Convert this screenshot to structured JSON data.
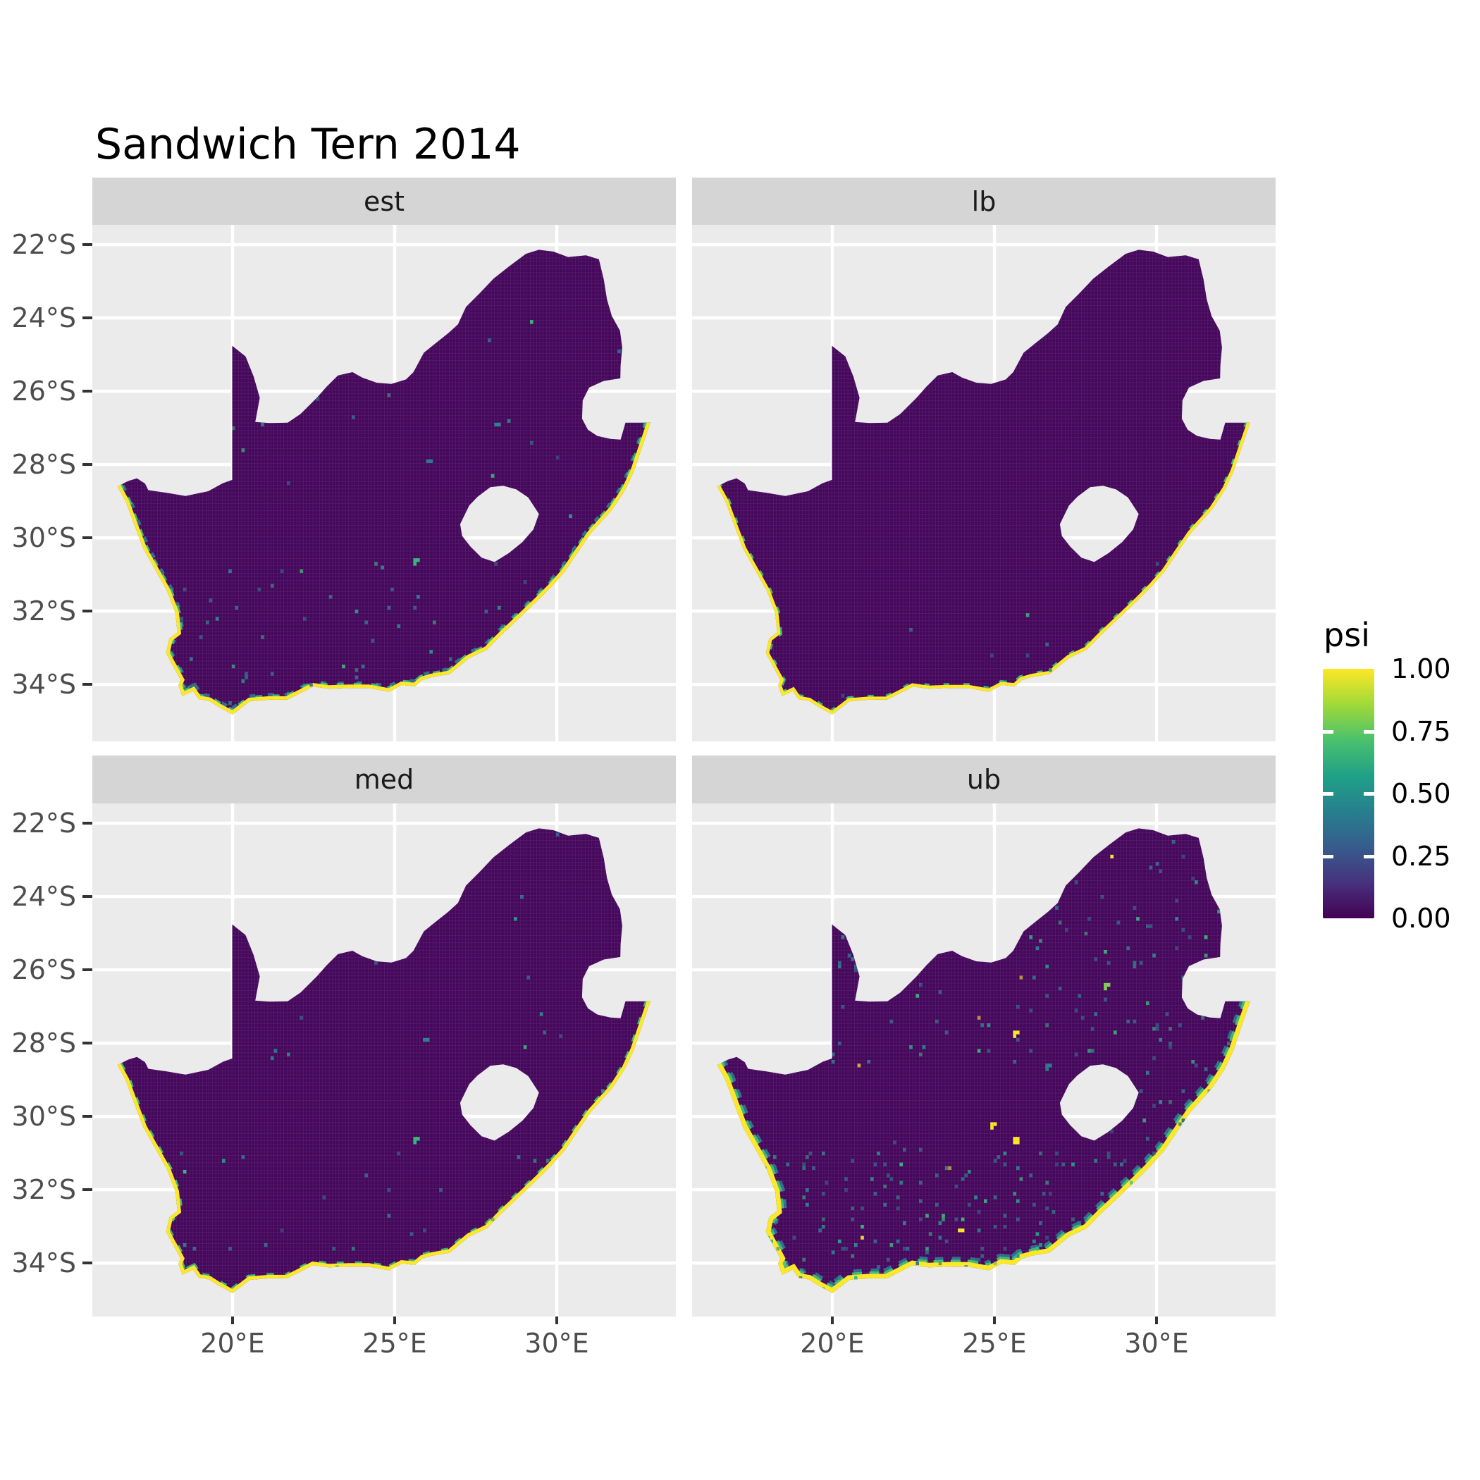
{
  "title": "Sandwich Tern 2014",
  "legend": {
    "title": "psi",
    "labels": [
      "1.00",
      "0.75",
      "0.50",
      "0.25",
      "0.00"
    ],
    "values": [
      1.0,
      0.75,
      0.5,
      0.25,
      0.0
    ]
  },
  "facets": [
    {
      "label": "est",
      "col": 0,
      "row": 0,
      "seed": 11,
      "speckles": 260,
      "bands": {
        "yellow": 10,
        "green": 15,
        "green_dash": "10 14",
        "teal": 19,
        "teal_dash": "8 18"
      },
      "hotspots": [
        [
          25.62,
          -30.66,
          "#35B779",
          3
        ],
        [
          28.1,
          -26.95,
          "#26828E",
          2
        ],
        [
          26.05,
          -27.9,
          "#2A788E",
          2
        ]
      ]
    },
    {
      "label": "lb",
      "col": 1,
      "row": 0,
      "seed": 22,
      "speckles": 24,
      "bands": {
        "yellow": 9,
        "green": 14,
        "green_dash": "8 20",
        "teal": 0,
        "teal_dash": "6 20"
      },
      "hotspots": []
    },
    {
      "label": "med",
      "col": 0,
      "row": 1,
      "seed": 33,
      "speckles": 160,
      "bands": {
        "yellow": 10,
        "green": 15,
        "green_dash": "10 16",
        "teal": 0,
        "teal_dash": "6 20"
      },
      "hotspots": [
        [
          25.62,
          -30.66,
          "#35B779",
          3
        ],
        [
          25.95,
          -27.95,
          "#26828E",
          2
        ]
      ]
    },
    {
      "label": "ub",
      "col": 1,
      "row": 1,
      "seed": 44,
      "speckles": 950,
      "bands": {
        "yellow": 13,
        "green": 20,
        "green_dash": "14 10",
        "teal": 28,
        "teal_dash": "12 12"
      },
      "hotspots": [
        [
          25.65,
          -30.6,
          "#FDE725",
          4
        ],
        [
          24.9,
          -30.2,
          "#FDE725",
          3
        ],
        [
          25.6,
          -27.72,
          "#FDE725",
          3
        ],
        [
          28.45,
          -26.45,
          "#7AD151",
          3
        ],
        [
          28.2,
          -28.9,
          "#22A884",
          3
        ],
        [
          23.95,
          -33.15,
          "#FDE725",
          2
        ],
        [
          26.6,
          -28.6,
          "#2A788E",
          3
        ]
      ]
    }
  ],
  "axes": {
    "x_tick_labels": [
      "20°E",
      "25°E",
      "30°E"
    ],
    "x_tick_values": [
      20,
      25,
      30
    ],
    "y_tick_labels": [
      "22°S",
      "24°S",
      "26°S",
      "28°S",
      "30°S",
      "32°S",
      "34°S"
    ],
    "y_tick_values": [
      -22,
      -24,
      -26,
      -28,
      -30,
      -32,
      -34
    ]
  },
  "colors": {
    "panel_bg": "#EBEBEB",
    "strip_bg": "#D5D5D5",
    "gridline": "#FFFFFF",
    "map_fill": "#46085C",
    "coast_yellow": "#FDE725",
    "band_green": "#3DBC74",
    "band_teal": "#2A788E",
    "axis_text": "#4D4D4D",
    "tick_mark": "#333333",
    "viridis_stops": [
      "#FDE725",
      "#A0DA39",
      "#4AC16D",
      "#1FA187",
      "#277F8E",
      "#365C8D",
      "#46327E",
      "#440154"
    ]
  },
  "chart_data": {
    "type": "heatmap",
    "title": "Sandwich Tern 2014",
    "facets": [
      "est",
      "lb",
      "med",
      "ub"
    ],
    "variable": "psi",
    "palette": "viridis",
    "scale_range": [
      0.0,
      1.0
    ],
    "scale_breaks": [
      0.0,
      0.25,
      0.5,
      0.75,
      1.0
    ],
    "x_axis": {
      "ticks_deg_east": [
        20,
        25,
        30
      ],
      "range_deg_east": [
        15.67,
        33.67
      ]
    },
    "y_axis": {
      "ticks_deg_south": [
        22,
        24,
        26,
        28,
        30,
        32,
        34
      ],
      "range_deg_south": [
        21.46,
        35.56
      ]
    },
    "description": "Occupancy probability (psi) raster maps of South Africa for Sandwich Tern 2014; est, lb, med show psi near 0 inland with psi near 1 along the coastline; ub shows elevated scattered values inland, especially in the south, with psi near 1 on the coast. Lesotho and Eswatini are excluded (no data)."
  },
  "map": {
    "outline": [
      [
        16.45,
        -28.6
      ],
      [
        16.78,
        -28.45
      ],
      [
        17.05,
        -28.38
      ],
      [
        17.3,
        -28.52
      ],
      [
        17.4,
        -28.7
      ],
      [
        17.95,
        -28.77
      ],
      [
        18.55,
        -28.86
      ],
      [
        19.25,
        -28.73
      ],
      [
        19.7,
        -28.51
      ],
      [
        19.99,
        -28.42
      ],
      [
        19.99,
        -24.76
      ],
      [
        20.4,
        -25.05
      ],
      [
        20.65,
        -25.6
      ],
      [
        20.84,
        -26.18
      ],
      [
        20.7,
        -26.84
      ],
      [
        21.15,
        -26.87
      ],
      [
        21.7,
        -26.86
      ],
      [
        22.1,
        -26.62
      ],
      [
        22.6,
        -26.18
      ],
      [
        22.9,
        -25.88
      ],
      [
        23.25,
        -25.57
      ],
      [
        23.7,
        -25.48
      ],
      [
        24.0,
        -25.63
      ],
      [
        24.45,
        -25.77
      ],
      [
        24.9,
        -25.8
      ],
      [
        25.35,
        -25.68
      ],
      [
        25.58,
        -25.48
      ],
      [
        25.9,
        -24.95
      ],
      [
        26.28,
        -24.68
      ],
      [
        26.65,
        -24.42
      ],
      [
        26.95,
        -24.18
      ],
      [
        27.2,
        -23.7
      ],
      [
        27.62,
        -23.33
      ],
      [
        28.05,
        -22.93
      ],
      [
        28.55,
        -22.58
      ],
      [
        29.05,
        -22.25
      ],
      [
        29.45,
        -22.14
      ],
      [
        29.9,
        -22.19
      ],
      [
        30.35,
        -22.34
      ],
      [
        30.9,
        -22.29
      ],
      [
        31.3,
        -22.4
      ],
      [
        31.45,
        -22.95
      ],
      [
        31.55,
        -23.5
      ],
      [
        31.7,
        -23.95
      ],
      [
        31.95,
        -24.35
      ],
      [
        32.02,
        -24.8
      ],
      [
        31.97,
        -25.3
      ],
      [
        31.96,
        -25.65
      ],
      [
        31.45,
        -25.72
      ],
      [
        31.0,
        -25.9
      ],
      [
        30.8,
        -26.25
      ],
      [
        30.78,
        -26.75
      ],
      [
        30.96,
        -27.05
      ],
      [
        31.25,
        -27.22
      ],
      [
        31.65,
        -27.3
      ],
      [
        31.97,
        -27.32
      ],
      [
        32.12,
        -26.86
      ],
      [
        32.55,
        -26.86
      ],
      [
        32.89,
        -26.86
      ],
      [
        32.64,
        -27.5
      ],
      [
        32.38,
        -28.18
      ],
      [
        32.12,
        -28.68
      ],
      [
        31.72,
        -29.22
      ],
      [
        31.05,
        -29.88
      ],
      [
        30.63,
        -30.42
      ],
      [
        30.25,
        -30.92
      ],
      [
        29.85,
        -31.32
      ],
      [
        29.4,
        -31.72
      ],
      [
        28.88,
        -32.16
      ],
      [
        28.28,
        -32.66
      ],
      [
        27.85,
        -33.05
      ],
      [
        27.3,
        -33.28
      ],
      [
        26.7,
        -33.72
      ],
      [
        26.15,
        -33.8
      ],
      [
        25.85,
        -33.88
      ],
      [
        25.63,
        -34.05
      ],
      [
        25.22,
        -34.02
      ],
      [
        24.83,
        -34.2
      ],
      [
        24.2,
        -34.1
      ],
      [
        23.58,
        -34.1
      ],
      [
        22.98,
        -34.12
      ],
      [
        22.48,
        -34.06
      ],
      [
        22.13,
        -34.22
      ],
      [
        21.68,
        -34.42
      ],
      [
        21.12,
        -34.42
      ],
      [
        20.53,
        -34.46
      ],
      [
        20.0,
        -34.82
      ],
      [
        19.58,
        -34.62
      ],
      [
        19.28,
        -34.45
      ],
      [
        18.95,
        -34.4
      ],
      [
        18.78,
        -34.18
      ],
      [
        18.45,
        -34.32
      ],
      [
        18.33,
        -34.02
      ],
      [
        18.4,
        -33.88
      ],
      [
        17.95,
        -33.15
      ],
      [
        18.05,
        -32.75
      ],
      [
        18.3,
        -32.58
      ],
      [
        18.24,
        -32.05
      ],
      [
        17.98,
        -31.45
      ],
      [
        17.62,
        -30.88
      ],
      [
        17.25,
        -30.3
      ],
      [
        16.95,
        -29.6
      ],
      [
        16.7,
        -29.0
      ]
    ],
    "coast_start": 58,
    "lesotho": [
      [
        27.02,
        -29.63
      ],
      [
        27.3,
        -29.12
      ],
      [
        27.56,
        -28.88
      ],
      [
        27.95,
        -28.62
      ],
      [
        28.35,
        -28.58
      ],
      [
        28.75,
        -28.68
      ],
      [
        29.12,
        -28.9
      ],
      [
        29.45,
        -29.35
      ],
      [
        29.28,
        -29.77
      ],
      [
        28.94,
        -30.12
      ],
      [
        28.52,
        -30.42
      ],
      [
        28.08,
        -30.66
      ],
      [
        27.68,
        -30.54
      ],
      [
        27.34,
        -30.24
      ],
      [
        27.08,
        -29.95
      ]
    ]
  }
}
